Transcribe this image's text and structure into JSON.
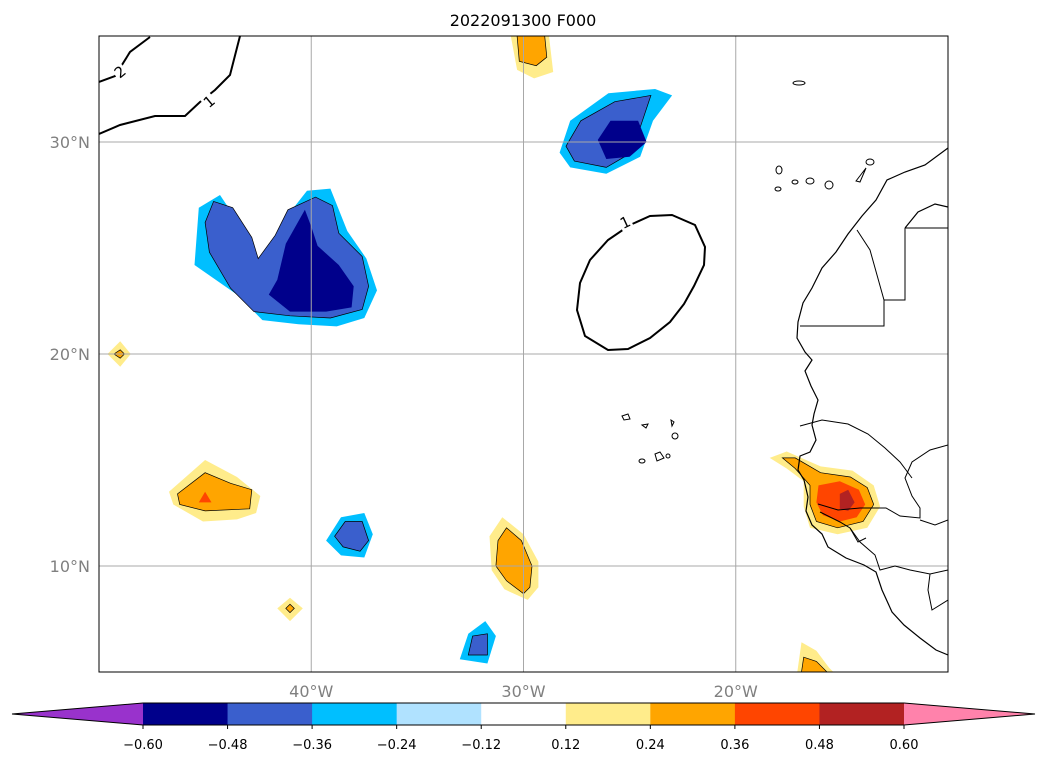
{
  "title": "2022091300 F000",
  "map": {
    "lon_range": [
      -50,
      -10
    ],
    "lat_range": [
      5,
      35
    ],
    "grid": true,
    "x_ticks": [
      {
        "lon": -40,
        "label": "40°W"
      },
      {
        "lon": -30,
        "label": "30°W"
      },
      {
        "lon": -20,
        "label": "20°W"
      }
    ],
    "y_ticks": [
      {
        "lat": 30,
        "label": "30°N"
      },
      {
        "lat": 20,
        "label": "20°N"
      },
      {
        "lat": 10,
        "label": "10°N"
      }
    ],
    "contour_labels": [
      {
        "text": "2",
        "lon": -49.0,
        "lat": 33.3,
        "rotate": -40
      },
      {
        "text": "1",
        "lon": -44.8,
        "lat": 31.9,
        "rotate": -40
      },
      {
        "text": "1",
        "lon": -25.2,
        "lat": 26.2,
        "rotate": -25
      }
    ],
    "features": [
      {
        "name": "neg-anomaly-azores",
        "shades": [
          {
            "level": -0.24,
            "poly": [
              [
                -28.3,
                29.5
              ],
              [
                -27.8,
                31.0
              ],
              [
                -26.0,
                32.3
              ],
              [
                -23.8,
                32.5
              ],
              [
                -23.0,
                32.2
              ],
              [
                -23.9,
                31.0
              ],
              [
                -24.5,
                29.3
              ],
              [
                -26.1,
                28.5
              ],
              [
                -27.8,
                28.8
              ]
            ]
          },
          {
            "level": -0.36,
            "poly": [
              [
                -28.0,
                29.8
              ],
              [
                -27.3,
                31.0
              ],
              [
                -25.7,
                31.9
              ],
              [
                -24.0,
                32.2
              ],
              [
                -24.4,
                31.0
              ],
              [
                -24.9,
                29.5
              ],
              [
                -26.1,
                28.8
              ],
              [
                -27.6,
                29.1
              ]
            ]
          },
          {
            "level": -0.48,
            "poly": [
              [
                -26.5,
                30.1
              ],
              [
                -25.9,
                31.0
              ],
              [
                -24.6,
                31.0
              ],
              [
                -24.2,
                30.0
              ],
              [
                -25.0,
                29.3
              ],
              [
                -26.1,
                29.2
              ]
            ]
          }
        ]
      },
      {
        "name": "neg-anomaly-u-shape",
        "shades": [
          {
            "level": -0.24,
            "poly": [
              [
                -45.3,
                26.9
              ],
              [
                -44.3,
                27.5
              ],
              [
                -43.3,
                26.0
              ],
              [
                -42.3,
                24.1
              ],
              [
                -41.3,
                26.3
              ],
              [
                -40.2,
                27.7
              ],
              [
                -39.1,
                27.8
              ],
              [
                -38.3,
                25.8
              ],
              [
                -37.4,
                24.5
              ],
              [
                -36.9,
                23.0
              ],
              [
                -37.5,
                21.7
              ],
              [
                -38.8,
                21.3
              ],
              [
                -40.6,
                21.4
              ],
              [
                -42.3,
                21.6
              ],
              [
                -43.5,
                22.8
              ],
              [
                -45.5,
                24.2
              ]
            ]
          },
          {
            "level": -0.36,
            "poly": [
              [
                -44.6,
                27.2
              ],
              [
                -43.7,
                26.9
              ],
              [
                -42.8,
                25.5
              ],
              [
                -42.5,
                24.5
              ],
              [
                -41.7,
                25.6
              ],
              [
                -41.1,
                26.8
              ],
              [
                -39.8,
                27.4
              ],
              [
                -39.0,
                27.0
              ],
              [
                -38.7,
                25.7
              ],
              [
                -37.6,
                24.6
              ],
              [
                -37.3,
                23.2
              ],
              [
                -37.6,
                22.1
              ],
              [
                -39.1,
                21.7
              ],
              [
                -41.0,
                21.8
              ],
              [
                -42.7,
                22.0
              ],
              [
                -43.8,
                23.1
              ],
              [
                -44.8,
                24.8
              ],
              [
                -45.0,
                26.2
              ]
            ]
          },
          {
            "level": -0.48,
            "poly": [
              [
                -40.3,
                26.8
              ],
              [
                -41.2,
                25.2
              ],
              [
                -41.6,
                23.5
              ],
              [
                -42.0,
                22.8
              ],
              [
                -41.0,
                22.0
              ],
              [
                -39.3,
                22.0
              ],
              [
                -38.1,
                22.2
              ],
              [
                -38.0,
                23.2
              ],
              [
                -38.7,
                24.2
              ],
              [
                -39.7,
                25.1
              ],
              [
                -40.0,
                26.0
              ]
            ]
          }
        ]
      },
      {
        "name": "neg-anomaly-west-africa-small",
        "shades": [
          {
            "level": -0.24,
            "poly": [
              [
                -38.6,
                12.3
              ],
              [
                -37.5,
                12.5
              ],
              [
                -37.1,
                11.5
              ],
              [
                -37.5,
                10.4
              ],
              [
                -38.6,
                10.5
              ],
              [
                -39.3,
                11.2
              ]
            ]
          },
          {
            "level": -0.36,
            "poly": [
              [
                -38.4,
                12.1
              ],
              [
                -37.6,
                12.1
              ],
              [
                -37.3,
                11.2
              ],
              [
                -37.7,
                10.7
              ],
              [
                -38.5,
                10.9
              ],
              [
                -38.9,
                11.4
              ]
            ]
          }
        ]
      },
      {
        "name": "neg-anomaly-south",
        "shades": [
          {
            "level": -0.24,
            "poly": [
              [
                -33.0,
                5.6
              ],
              [
                -31.7,
                5.4
              ],
              [
                -31.3,
                6.7
              ],
              [
                -31.8,
                7.4
              ],
              [
                -32.6,
                6.8
              ]
            ]
          },
          {
            "level": -0.36,
            "poly": [
              [
                -32.6,
                5.8
              ],
              [
                -31.7,
                5.8
              ],
              [
                -31.7,
                6.8
              ],
              [
                -32.4,
                6.7
              ]
            ]
          }
        ]
      },
      {
        "name": "pos-anomaly-north",
        "shades": [
          {
            "level": 0.12,
            "poly": [
              [
                -30.6,
                35.0
              ],
              [
                -30.3,
                33.4
              ],
              [
                -29.5,
                33.0
              ],
              [
                -28.6,
                33.3
              ],
              [
                -28.8,
                35.0
              ]
            ]
          },
          {
            "level": 0.24,
            "poly": [
              [
                -30.3,
                35.0
              ],
              [
                -30.2,
                33.8
              ],
              [
                -29.4,
                33.6
              ],
              [
                -28.9,
                34.0
              ],
              [
                -29.0,
                35.0
              ]
            ]
          }
        ]
      },
      {
        "name": "pos-anomaly-west",
        "shades": [
          {
            "level": 0.12,
            "poly": [
              [
                -46.7,
                13.5
              ],
              [
                -45.0,
                15.0
              ],
              [
                -43.5,
                14.2
              ],
              [
                -42.4,
                13.3
              ],
              [
                -42.6,
                12.5
              ],
              [
                -43.5,
                12.2
              ],
              [
                -45.1,
                12.1
              ],
              [
                -46.5,
                12.9
              ]
            ]
          },
          {
            "level": 0.24,
            "poly": [
              [
                -46.3,
                13.4
              ],
              [
                -45.0,
                14.4
              ],
              [
                -43.8,
                13.9
              ],
              [
                -42.8,
                13.6
              ],
              [
                -42.9,
                12.7
              ],
              [
                -45.0,
                12.6
              ],
              [
                -46.2,
                12.9
              ]
            ]
          },
          {
            "level": 0.36,
            "poly": [
              [
                -45.3,
                13.0
              ],
              [
                -45.0,
                13.5
              ],
              [
                -44.7,
                13.0
              ]
            ]
          }
        ]
      },
      {
        "name": "pos-anomaly-dot-west",
        "shades": [
          {
            "level": 0.12,
            "poly": [
              [
                -49.6,
                20.0
              ],
              [
                -49.0,
                20.6
              ],
              [
                -48.5,
                20.0
              ],
              [
                -49.0,
                19.4
              ]
            ]
          },
          {
            "level": 0.24,
            "poly": [
              [
                -49.3,
                20.0
              ],
              [
                -49.0,
                20.2
              ],
              [
                -48.8,
                20.0
              ],
              [
                -49.0,
                19.8
              ]
            ]
          }
        ]
      },
      {
        "name": "pos-anomaly-dot-south",
        "shades": [
          {
            "level": 0.12,
            "poly": [
              [
                -41.6,
                8.0
              ],
              [
                -41.0,
                8.5
              ],
              [
                -40.4,
                8.0
              ],
              [
                -41.0,
                7.4
              ]
            ]
          },
          {
            "level": 0.24,
            "poly": [
              [
                -41.2,
                8.0
              ],
              [
                -41.0,
                8.2
              ],
              [
                -40.8,
                8.0
              ],
              [
                -41.0,
                7.8
              ]
            ]
          }
        ]
      },
      {
        "name": "pos-anomaly-central",
        "shades": [
          {
            "level": 0.12,
            "poly": [
              [
                -31.6,
                11.4
              ],
              [
                -31.0,
                12.3
              ],
              [
                -30.0,
                11.5
              ],
              [
                -29.3,
                10.2
              ],
              [
                -29.3,
                9.0
              ],
              [
                -29.8,
                8.4
              ],
              [
                -30.9,
                8.9
              ],
              [
                -31.5,
                9.8
              ]
            ]
          },
          {
            "level": 0.24,
            "poly": [
              [
                -31.2,
                11.2
              ],
              [
                -30.8,
                11.8
              ],
              [
                -30.1,
                11.2
              ],
              [
                -29.6,
                10.0
              ],
              [
                -29.7,
                9.0
              ],
              [
                -30.0,
                8.7
              ],
              [
                -30.8,
                9.3
              ],
              [
                -31.3,
                10.0
              ]
            ]
          }
        ]
      },
      {
        "name": "pos-anomaly-senegal",
        "shades": [
          {
            "level": 0.12,
            "poly": [
              [
                -18.4,
                15.1
              ],
              [
                -17.6,
                15.4
              ],
              [
                -16.0,
                14.7
              ],
              [
                -14.5,
                14.5
              ],
              [
                -13.5,
                13.8
              ],
              [
                -13.2,
                12.8
              ],
              [
                -13.8,
                11.8
              ],
              [
                -15.2,
                11.5
              ],
              [
                -16.5,
                11.8
              ],
              [
                -16.8,
                12.8
              ],
              [
                -16.8,
                14.0
              ],
              [
                -17.6,
                14.6
              ]
            ]
          },
          {
            "level": 0.24,
            "poly": [
              [
                -17.8,
                15.1
              ],
              [
                -17.2,
                15.1
              ],
              [
                -16.0,
                14.4
              ],
              [
                -14.6,
                14.2
              ],
              [
                -13.8,
                13.7
              ],
              [
                -13.5,
                12.9
              ],
              [
                -14.0,
                12.1
              ],
              [
                -15.2,
                11.8
              ],
              [
                -16.2,
                12.1
              ],
              [
                -16.5,
                12.9
              ],
              [
                -16.5,
                13.8
              ],
              [
                -17.2,
                14.6
              ]
            ]
          },
          {
            "level": 0.36,
            "poly": [
              [
                -16.1,
                13.8
              ],
              [
                -15.1,
                14.0
              ],
              [
                -14.2,
                13.6
              ],
              [
                -13.9,
                12.9
              ],
              [
                -14.3,
                12.3
              ],
              [
                -15.1,
                12.1
              ],
              [
                -15.9,
                12.4
              ],
              [
                -16.2,
                13.0
              ]
            ]
          },
          {
            "level": 0.48,
            "poly": [
              [
                -15.1,
                13.4
              ],
              [
                -14.7,
                13.6
              ],
              [
                -14.4,
                13.0
              ],
              [
                -14.7,
                12.6
              ],
              [
                -15.1,
                12.7
              ]
            ]
          }
        ]
      },
      {
        "name": "pos-anomaly-southeast",
        "shades": [
          {
            "level": 0.12,
            "poly": [
              [
                -17.1,
                5.0
              ],
              [
                -16.9,
                6.4
              ],
              [
                -16.2,
                6.0
              ],
              [
                -15.6,
                5.2
              ],
              [
                -15.4,
                5.0
              ]
            ]
          },
          {
            "level": 0.24,
            "poly": [
              [
                -16.9,
                5.0
              ],
              [
                -16.8,
                5.7
              ],
              [
                -16.2,
                5.5
              ],
              [
                -15.7,
                5.0
              ]
            ]
          }
        ]
      }
    ]
  },
  "colorbar": {
    "labels": [
      "−0.60",
      "−0.48",
      "−0.36",
      "−0.24",
      "−0.12",
      "0.12",
      "0.24",
      "0.36",
      "0.48",
      "0.60"
    ],
    "levels": [
      -0.6,
      -0.48,
      -0.36,
      -0.24,
      -0.12,
      0.12,
      0.24,
      0.36,
      0.48,
      0.6
    ],
    "colors": [
      "#9932CC",
      "#00008B",
      "#3A5FCD",
      "#00BFFF",
      "#B0E2FF",
      "#FFFFFF",
      "#FFEC8B",
      "#FFA500",
      "#FF4500",
      "#B22222",
      "#FF82AB"
    ],
    "extend": "both"
  }
}
